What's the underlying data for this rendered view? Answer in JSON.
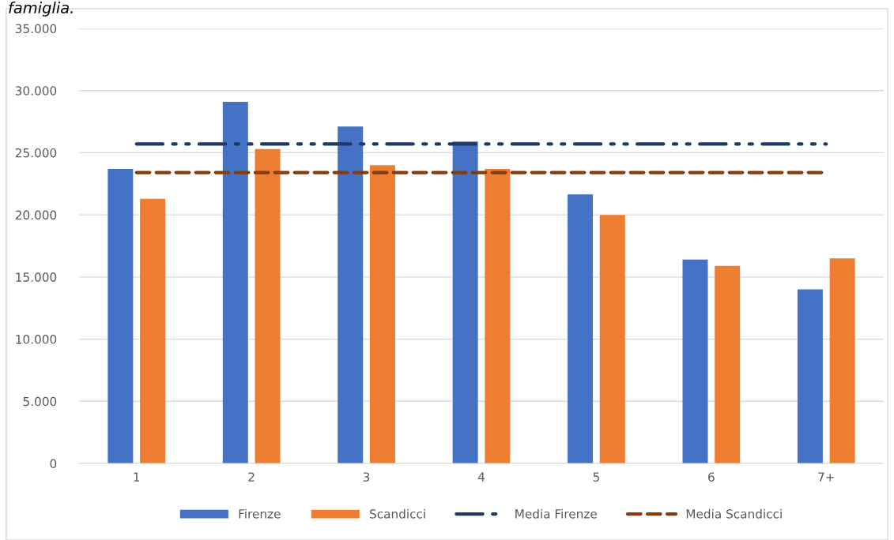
{
  "chart_data": {
    "type": "bar",
    "title": "famiglia.",
    "categories": [
      "1",
      "2",
      "3",
      "4",
      "5",
      "6",
      "7+"
    ],
    "series": [
      {
        "name": "Firenze",
        "color": "#4472c4",
        "values": [
          23700,
          29100,
          27100,
          25900,
          21650,
          16400,
          14000
        ]
      },
      {
        "name": "Scandicci",
        "color": "#ed7d31",
        "values": [
          21300,
          25300,
          24000,
          23700,
          20000,
          15900,
          16500
        ]
      },
      {
        "name": "Media Firenze",
        "type": "line",
        "color": "#203864",
        "line_style": "dashdotdot",
        "values": [
          25700,
          25700,
          25700,
          25700,
          25700,
          25700,
          25700
        ]
      },
      {
        "name": "Media Scandicci",
        "type": "line",
        "color": "#843c0c",
        "line_style": "dashed",
        "values": [
          23400,
          23400,
          23400,
          23400,
          23400,
          23400,
          23400
        ]
      }
    ],
    "ylim": [
      0,
      35000
    ],
    "yticks": [
      {
        "value": 0,
        "label": "0"
      },
      {
        "value": 5000,
        "label": "5.000"
      },
      {
        "value": 10000,
        "label": "10.000"
      },
      {
        "value": 15000,
        "label": "15.000"
      },
      {
        "value": 20000,
        "label": "20.000"
      },
      {
        "value": 25000,
        "label": "25.000"
      },
      {
        "value": 30000,
        "label": "30.000"
      },
      {
        "value": 35000,
        "label": "35.000"
      }
    ],
    "grid": "y",
    "legend": "bottom"
  }
}
